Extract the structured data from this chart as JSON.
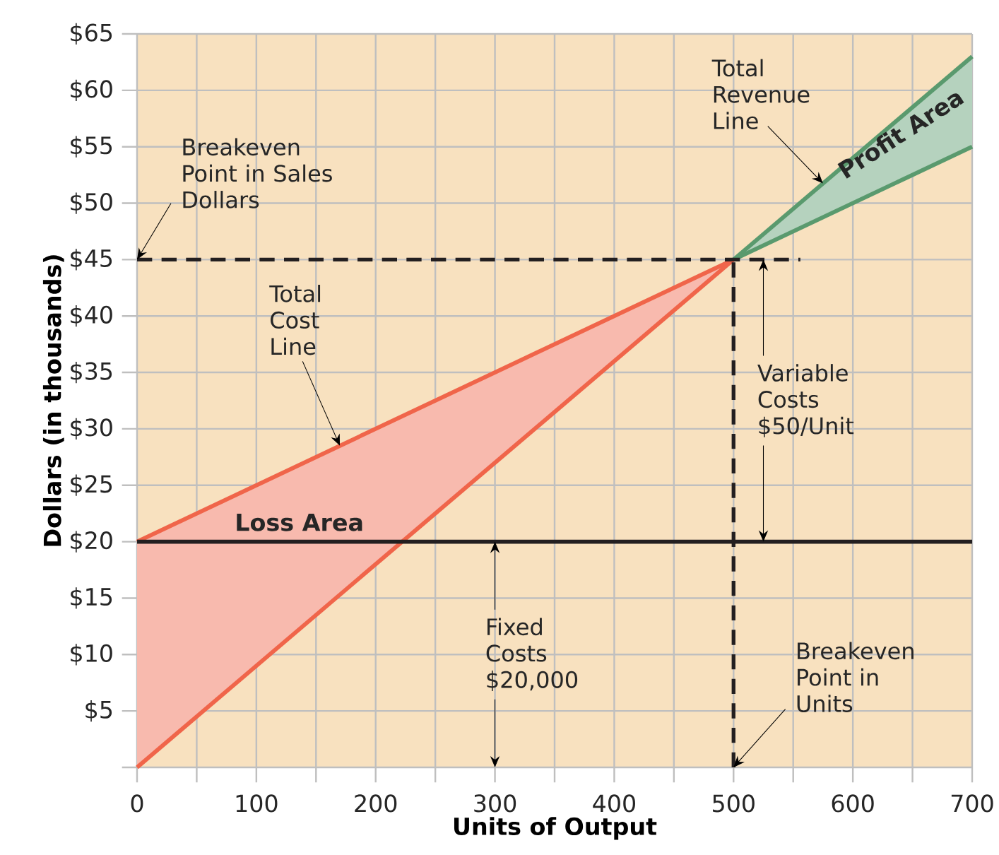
{
  "chart_data": {
    "type": "line",
    "xlabel": "Units of Output",
    "ylabel": "Dollars (in thousands)",
    "xlim": [
      0,
      700
    ],
    "ylim": [
      0,
      65
    ],
    "xticks": [
      0,
      {
        "value": 50,
        "label": null
      },
      100,
      {
        "value": 150,
        "label": null
      },
      200,
      {
        "value": 250,
        "label": null
      },
      300,
      {
        "value": 350,
        "label": null
      },
      400,
      {
        "value": 450,
        "label": null
      },
      500,
      {
        "value": 550,
        "label": null
      },
      600,
      {
        "value": 650,
        "label": null
      },
      700
    ],
    "yticks": [
      {
        "value": 0,
        "label": null
      },
      {
        "value": 5,
        "label": "$5"
      },
      {
        "value": 10,
        "label": "$10"
      },
      {
        "value": 15,
        "label": "$15"
      },
      {
        "value": 20,
        "label": "$20"
      },
      {
        "value": 25,
        "label": "$25"
      },
      {
        "value": 30,
        "label": "$30"
      },
      {
        "value": 35,
        "label": "$35"
      },
      {
        "value": 40,
        "label": "$40"
      },
      {
        "value": 45,
        "label": "$45"
      },
      {
        "value": 50,
        "label": "$50"
      },
      {
        "value": 55,
        "label": "$55"
      },
      {
        "value": 60,
        "label": "$60"
      },
      {
        "value": 65,
        "label": "$65"
      }
    ],
    "grid": true,
    "series": [
      {
        "color": "#f0654a",
        "x": [
          0,
          500
        ],
        "values": [
          20,
          45
        ],
        "lower": [
          0,
          45
        ],
        "upper": [
          20,
          45
        ]
      },
      {
        "color": "#f0654a",
        "x": [
          0,
          500
        ],
        "values": [
          0,
          45
        ]
      },
      {
        "color": "#5a9a6e",
        "x": [
          500,
          700
        ],
        "values": [
          45,
          63
        ],
        "lower": [
          45,
          55
        ],
        "upper": [
          45,
          63
        ]
      },
      {
        "color": "#5a9a6e",
        "x": [
          500,
          700
        ],
        "values": [
          45,
          55
        ]
      },
      {
        "color": "#231f20",
        "x": [
          0,
          700
        ],
        "values": [
          20,
          20
        ]
      }
    ],
    "ref_lines": [
      {
        "axis": "y",
        "value": 45,
        "line_style": "dashed",
        "color": "#231f20"
      },
      {
        "axis": "x",
        "value": 500,
        "line_style": "dashed",
        "color": "#231f20"
      }
    ],
    "annotations": [
      {
        "text": "Breakeven Point in Sales Dollars",
        "x": 0,
        "y": 45
      },
      {
        "text": "Total Cost Line",
        "x": 170,
        "y": 28.5
      },
      {
        "text": "Total Revenue Line",
        "x": 575,
        "y": 51.75
      },
      "Profit Area",
      "Loss Area",
      {
        "text": "Variable Costs $50/Unit",
        "x": 525,
        "y": 45
      },
      {
        "text": "Fixed Costs $20,000",
        "x": 300,
        "y": 20
      },
      {
        "text": "Breakeven Point in Units",
        "x": 500,
        "y": 0
      }
    ]
  }
}
